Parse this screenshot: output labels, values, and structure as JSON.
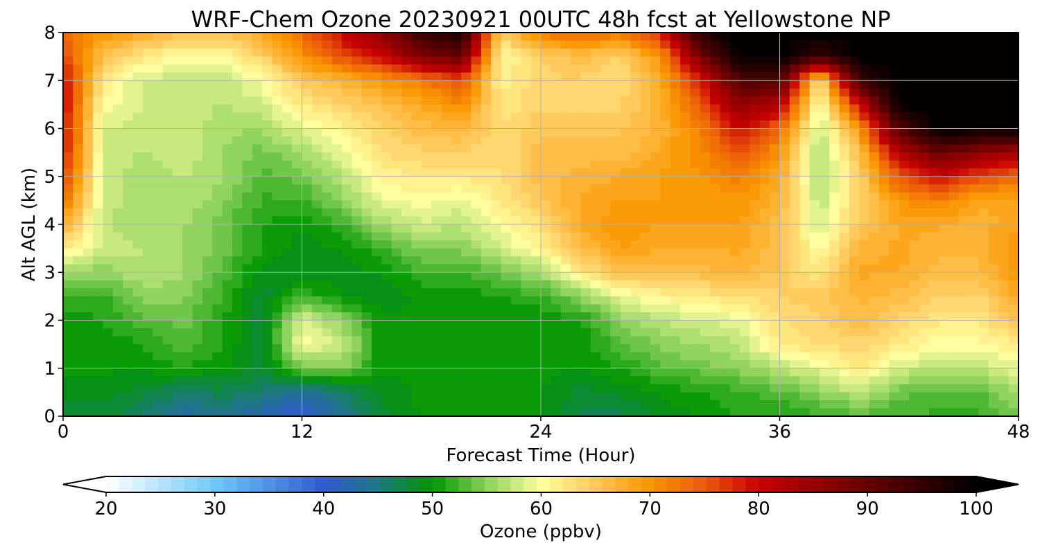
{
  "chart_data": {
    "type": "heatmap",
    "title": "WRF-Chem Ozone  20230921 00UTC 48h fcst at Yellowstone NP",
    "xlabel": "Forecast Time (Hour)",
    "ylabel": "Alt AGL (km)",
    "xlim": [
      0,
      48
    ],
    "ylim": [
      0,
      8
    ],
    "x_ticks": [
      0,
      12,
      24,
      36,
      48
    ],
    "y_ticks": [
      0,
      1,
      2,
      3,
      4,
      5,
      6,
      7,
      8
    ],
    "grid": true,
    "colorbar": {
      "label": "Ozone  (ppbv)",
      "ticks": [
        20,
        30,
        40,
        50,
        60,
        70,
        80,
        90,
        100
      ],
      "range": [
        20,
        100
      ],
      "extend": "both"
    },
    "x": [
      0,
      2,
      4,
      6,
      8,
      10,
      12,
      14,
      16,
      18,
      20,
      22,
      24,
      26,
      28,
      30,
      32,
      34,
      36,
      38,
      40,
      42,
      44,
      46,
      48
    ],
    "y": [
      0,
      0.5,
      1,
      1.5,
      2,
      2.5,
      3,
      3.5,
      4,
      4.5,
      5,
      5.5,
      6,
      6.5,
      7,
      7.5,
      8
    ],
    "z": [
      [
        48,
        48,
        46,
        43,
        44,
        42,
        40,
        44,
        48,
        50,
        50,
        50,
        50,
        47,
        47,
        49,
        50,
        51,
        51,
        52,
        53,
        52,
        52,
        52,
        54
      ],
      [
        49,
        49,
        48,
        46,
        47,
        46,
        43,
        46,
        49,
        50,
        50,
        50,
        50,
        48,
        49,
        50,
        51,
        52,
        53,
        55,
        57,
        54,
        53,
        53,
        56
      ],
      [
        50,
        50,
        50,
        51,
        50,
        48,
        54,
        55,
        50,
        50,
        50,
        50,
        50,
        50,
        51,
        53,
        54,
        55,
        57,
        59,
        62,
        58,
        57,
        57,
        59
      ],
      [
        50,
        50,
        51,
        53,
        51,
        48,
        60,
        58,
        50,
        50,
        50,
        50,
        50,
        50,
        53,
        55,
        56,
        57,
        62,
        63,
        64,
        62,
        60,
        60,
        62
      ],
      [
        50,
        51,
        53,
        54,
        51,
        48,
        59,
        55,
        50,
        50,
        50,
        50,
        50,
        51,
        55,
        57,
        58,
        59,
        63,
        64,
        66,
        64,
        62,
        62,
        66
      ],
      [
        52,
        52,
        55,
        55,
        52,
        48,
        52,
        50,
        49,
        50,
        50,
        51,
        52,
        55,
        59,
        61,
        62,
        63,
        64,
        65,
        67,
        66,
        64,
        64,
        68
      ],
      [
        56,
        55,
        57,
        56,
        53,
        49,
        49,
        49,
        50,
        52,
        52,
        54,
        56,
        62,
        66,
        66,
        66,
        67,
        65,
        62,
        68,
        68,
        66,
        66,
        70
      ],
      [
        62,
        58,
        57,
        56,
        54,
        51,
        49,
        50,
        52,
        55,
        55,
        58,
        61,
        66,
        69,
        68,
        68,
        68,
        66,
        60,
        67,
        68,
        67,
        67,
        70
      ],
      [
        68,
        57,
        56,
        56,
        54,
        51,
        50,
        52,
        56,
        58,
        57,
        60,
        63,
        68,
        70,
        69,
        69,
        69,
        66,
        58,
        65,
        68,
        68,
        67,
        69
      ],
      [
        73,
        58,
        56,
        57,
        55,
        52,
        52,
        55,
        59,
        60,
        59,
        62,
        65,
        68,
        69,
        69,
        69,
        70,
        67,
        57,
        64,
        70,
        72,
        68,
        68
      ],
      [
        77,
        58,
        56,
        57,
        56,
        53,
        54,
        57,
        61,
        62,
        62,
        63,
        66,
        67,
        68,
        69,
        70,
        72,
        68,
        56,
        64,
        75,
        80,
        76,
        74
      ],
      [
        79,
        58,
        57,
        58,
        56,
        54,
        56,
        59,
        63,
        64,
        64,
        63,
        66,
        66,
        66,
        68,
        71,
        75,
        70,
        56,
        66,
        82,
        90,
        86,
        84
      ],
      [
        80,
        58,
        58,
        58,
        56,
        56,
        59,
        61,
        64,
        66,
        67,
        63,
        65,
        65,
        65,
        67,
        72,
        80,
        74,
        57,
        70,
        92,
        100,
        100,
        100
      ],
      [
        80,
        60,
        58,
        58,
        57,
        58,
        62,
        64,
        66,
        68,
        71,
        62,
        64,
        64,
        64,
        67,
        75,
        86,
        82,
        59,
        80,
        100,
        100,
        100,
        100
      ],
      [
        80,
        62,
        58,
        57,
        57,
        60,
        65,
        67,
        70,
        72,
        76,
        61,
        64,
        64,
        63,
        68,
        78,
        92,
        92,
        62,
        94,
        100,
        100,
        100,
        100
      ],
      [
        76,
        66,
        62,
        60,
        60,
        64,
        70,
        76,
        80,
        88,
        90,
        60,
        64,
        66,
        64,
        70,
        88,
        100,
        100,
        94,
        100,
        100,
        100,
        100,
        100
      ],
      [
        74,
        70,
        68,
        66,
        66,
        68,
        74,
        80,
        86,
        94,
        98,
        64,
        72,
        74,
        72,
        78,
        96,
        100,
        100,
        100,
        100,
        100,
        100,
        100,
        100
      ]
    ]
  }
}
